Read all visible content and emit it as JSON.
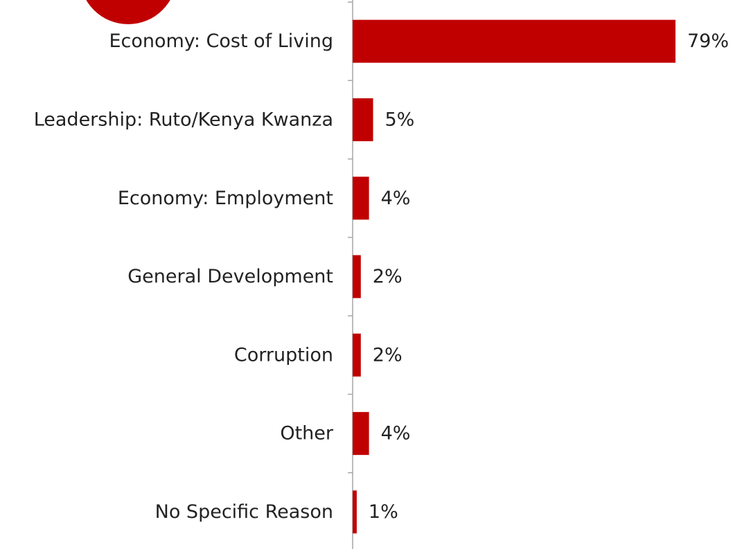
{
  "chart_data": {
    "type": "bar",
    "orientation": "horizontal",
    "categories": [
      "Economy: Cost of Living",
      "Leadership: Ruto/Kenya Kwanza",
      "Economy: Employment",
      "General Development",
      "Corruption",
      "Other",
      "No Specific Reason"
    ],
    "values": [
      79,
      5,
      4,
      2,
      2,
      4,
      1
    ],
    "value_labels": [
      "79%",
      "5%",
      "4%",
      "2%",
      "2%",
      "4%",
      "1%"
    ],
    "unit": "%",
    "xlim": [
      0,
      100
    ],
    "grid": false,
    "bar_color": "#c00000",
    "badge_color": "#c00000"
  }
}
